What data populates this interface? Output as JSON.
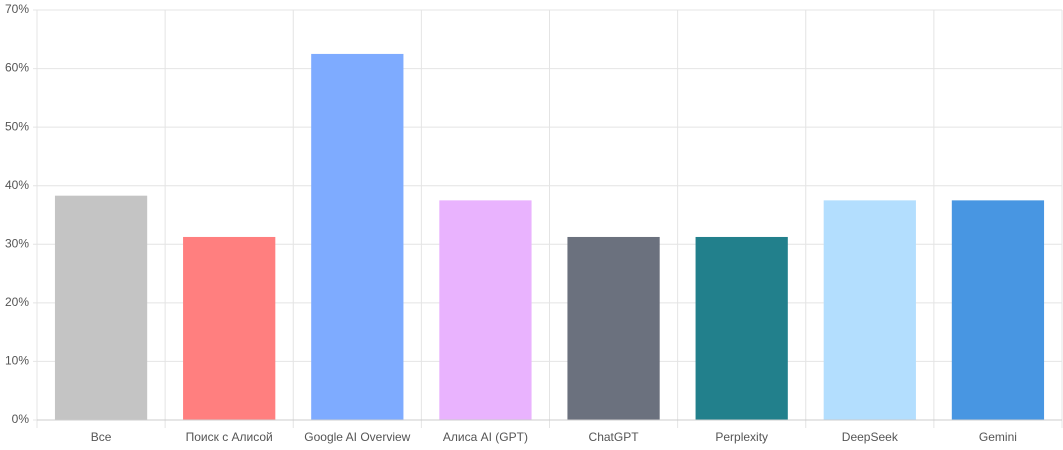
{
  "chart_data": {
    "type": "bar",
    "categories": [
      "Все",
      "Поиск с Алисой",
      "Google AI Overview",
      "Алиса AI (GPT)",
      "ChatGPT",
      "Perplexity",
      "DeepSeek",
      "Gemini"
    ],
    "values": [
      38.3,
      31.25,
      62.5,
      37.5,
      31.25,
      31.25,
      37.5,
      37.5
    ],
    "colors": [
      "#c4c4c4",
      "#ff7f7f",
      "#7eabff",
      "#e9b3fe",
      "#6b717e",
      "#22808c",
      "#b3defe",
      "#4896e2"
    ],
    "ylim": [
      0,
      70
    ],
    "yticks": [
      {
        "value": 0,
        "label": "0%"
      },
      {
        "value": 10,
        "label": "10%"
      },
      {
        "value": 20,
        "label": "20%"
      },
      {
        "value": 30,
        "label": "30%"
      },
      {
        "value": 40,
        "label": "40%"
      },
      {
        "value": 50,
        "label": "50%"
      },
      {
        "value": 60,
        "label": "60%"
      },
      {
        "value": 70,
        "label": "70%"
      }
    ],
    "grid": true
  }
}
